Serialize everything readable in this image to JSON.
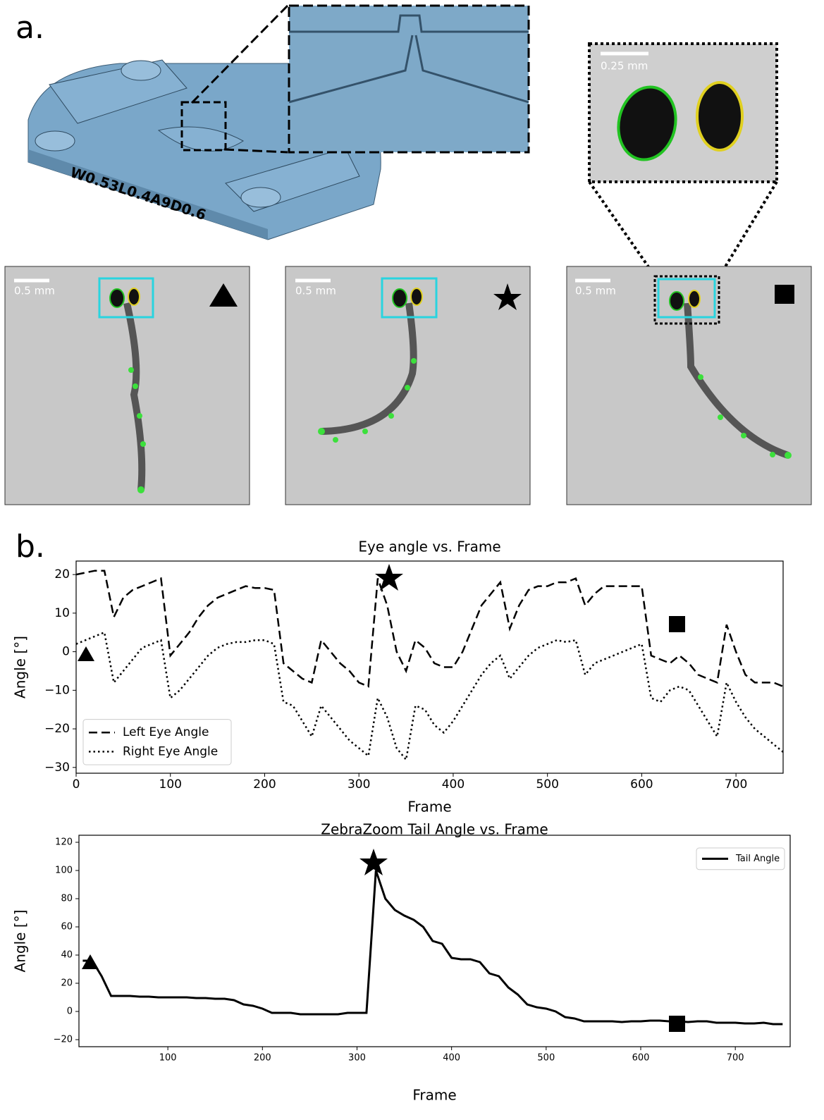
{
  "panel_labels": [
    "a.",
    "b."
  ],
  "chip_label": "W0.53L0.4A9D0.6",
  "zoom_scale_bar": "0.25 mm",
  "frame_scale_bars": [
    "0.5 mm",
    "0.5 mm",
    "0.5 mm"
  ],
  "chart_data": [
    {
      "type": "line",
      "title": "Eye angle vs. Frame",
      "x_label": "Frame",
      "y_label": "Angle [°]",
      "xlim": [
        0,
        750
      ],
      "ylim": [
        -31.5,
        23.5
      ],
      "xticks": [
        0,
        100,
        200,
        300,
        400,
        500,
        600,
        700
      ],
      "yticks": [
        {
          "value": -30,
          "label": "−30"
        },
        {
          "value": -20,
          "label": "−20"
        },
        {
          "value": -10,
          "label": "−10"
        },
        0,
        10,
        20
      ],
      "legend": "lower left",
      "grid": false,
      "x": [
        0,
        10,
        20,
        30,
        40,
        50,
        60,
        70,
        80,
        90,
        100,
        110,
        120,
        130,
        140,
        150,
        160,
        170,
        180,
        190,
        200,
        210,
        220,
        230,
        240,
        250,
        260,
        270,
        280,
        290,
        300,
        310,
        320,
        330,
        340,
        350,
        360,
        370,
        380,
        390,
        400,
        410,
        420,
        430,
        440,
        450,
        460,
        470,
        480,
        490,
        500,
        510,
        520,
        530,
        540,
        550,
        560,
        570,
        580,
        590,
        600,
        610,
        620,
        630,
        640,
        650,
        660,
        670,
        680,
        690,
        700,
        710,
        720,
        730,
        740,
        750
      ],
      "series": [
        {
          "name": "Left Eye Angle",
          "color": "#000000",
          "dash": "dashed",
          "values": [
            20,
            20.5,
            21,
            21,
            9,
            14,
            16,
            17,
            18,
            19,
            -1,
            2,
            5,
            9,
            12,
            14,
            15,
            16,
            17,
            16.5,
            16.5,
            16,
            -3,
            -5,
            -7,
            -8,
            3,
            0,
            -3,
            -5,
            -8,
            -9,
            19,
            12,
            0,
            -5,
            3,
            1,
            -3,
            -4,
            -4,
            0,
            6,
            12,
            15,
            18,
            6,
            12,
            16,
            17,
            17,
            18,
            18,
            19,
            12,
            15,
            17,
            17,
            17,
            17,
            17,
            -1,
            -2,
            -3,
            -1,
            -3,
            -6,
            -7,
            -8,
            7,
            0,
            -6,
            -8,
            -8,
            -8,
            -9
          ]
        },
        {
          "name": "Right Eye Angle",
          "color": "#000000",
          "dash": "dotted",
          "values": [
            2,
            3,
            4,
            5,
            -8,
            -5,
            -2,
            1,
            2,
            3,
            -12,
            -10,
            -7,
            -4,
            -1,
            1,
            2,
            2.5,
            2.5,
            3,
            3,
            2,
            -13,
            -14,
            -18,
            -22,
            -14,
            -17,
            -20,
            -23,
            -25,
            -27,
            -12,
            -17,
            -25,
            -28,
            -14,
            -15,
            -19,
            -21,
            -18,
            -14,
            -10,
            -6,
            -3,
            -1,
            -7,
            -4,
            -1,
            1,
            2,
            3,
            2.5,
            3,
            -6,
            -3,
            -2,
            -1,
            0,
            1,
            2,
            -12,
            -13,
            -10,
            -9,
            -10,
            -14,
            -18,
            -22,
            -8,
            -13,
            -17,
            -20,
            -22,
            -24,
            -26
          ]
        }
      ]
    },
    {
      "type": "line",
      "title": "ZebraZoom Tail Angle vs. Frame",
      "x_label": "Frame",
      "y_label": "Angle [°]",
      "xlim": [
        6,
        758
      ],
      "ylim": [
        -25,
        125
      ],
      "xticks": [
        100,
        200,
        300,
        400,
        500,
        600,
        700
      ],
      "yticks": [
        {
          "value": -20,
          "label": "−20"
        },
        0,
        20,
        40,
        60,
        80,
        100,
        120
      ],
      "legend": "upper right",
      "grid": false,
      "x": [
        10,
        20,
        30,
        40,
        50,
        60,
        70,
        80,
        90,
        100,
        110,
        120,
        130,
        140,
        150,
        160,
        170,
        180,
        190,
        200,
        210,
        220,
        230,
        240,
        250,
        260,
        270,
        280,
        290,
        300,
        310,
        320,
        330,
        340,
        350,
        360,
        370,
        380,
        390,
        400,
        410,
        420,
        430,
        440,
        450,
        460,
        470,
        480,
        490,
        500,
        510,
        520,
        530,
        540,
        550,
        560,
        570,
        580,
        590,
        600,
        610,
        620,
        630,
        640,
        650,
        660,
        670,
        680,
        690,
        700,
        710,
        720,
        730,
        740,
        750
      ],
      "series": [
        {
          "name": "Tail Angle",
          "color": "#000000",
          "dash": "solid",
          "values": [
            36,
            36,
            25,
            11,
            11,
            11,
            10.5,
            10.5,
            10,
            10,
            10,
            10,
            9.5,
            9.5,
            9,
            9,
            8,
            5,
            4,
            2,
            -1,
            -1,
            -1,
            -2,
            -2,
            -2,
            -2,
            -2,
            -1,
            -1,
            -1,
            100,
            80,
            72,
            68,
            65,
            60,
            50,
            48,
            38,
            37,
            37,
            35,
            27,
            25,
            17,
            12,
            5,
            3,
            2,
            0,
            -4,
            -5,
            -7,
            -7,
            -7,
            -7,
            -7.5,
            -7,
            -7,
            -6.5,
            -6.5,
            -7,
            -7,
            -7.5,
            -7,
            -7,
            -8,
            -8,
            -8,
            -8.5,
            -8.5,
            -8,
            -9,
            -9
          ]
        }
      ]
    }
  ]
}
